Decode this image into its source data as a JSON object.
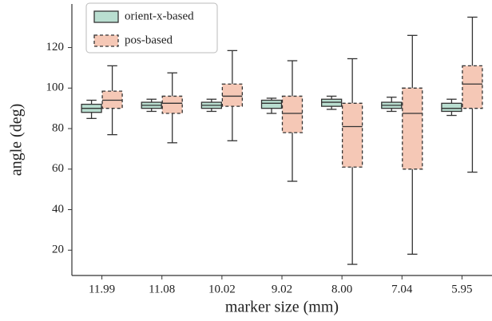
{
  "chart_data": {
    "type": "box",
    "x_label": "marker size (mm)",
    "y_label": "angle (deg)",
    "categories": [
      "11.99",
      "11.08",
      "10.02",
      "9.02",
      "8.00",
      "7.04",
      "5.95"
    ],
    "ylim": [
      7.5,
      141.5
    ],
    "yticks": [
      20,
      40,
      60,
      80,
      100,
      120
    ],
    "legend": "upper left",
    "series": [
      {
        "name": "orient-x-based",
        "color": "#b9ded0",
        "dashed": false,
        "whislo": [
          85,
          88.5,
          88.5,
          87.5,
          89.5,
          88.5,
          86.5
        ],
        "q1": [
          88,
          90,
          90,
          90,
          91,
          90,
          88.5
        ],
        "med": [
          90,
          91.5,
          91.5,
          92.5,
          93,
          91.5,
          90
        ],
        "q3": [
          92,
          93,
          93,
          94,
          94.5,
          93,
          92.5
        ],
        "whishi": [
          94,
          94.5,
          94.5,
          95,
          96,
          95.5,
          94.5
        ]
      },
      {
        "name": "pos-based",
        "color": "#f5c8b6",
        "dashed": true,
        "whislo": [
          77,
          73,
          74,
          54,
          13,
          18,
          58.5
        ],
        "q1": [
          90,
          87.5,
          91,
          78,
          61,
          60,
          90
        ],
        "med": [
          94,
          92.5,
          96,
          87.5,
          81,
          87.5,
          102
        ],
        "q3": [
          98.5,
          96,
          102,
          96,
          92.5,
          100,
          111
        ],
        "whishi": [
          111,
          107.5,
          118.5,
          113.5,
          114.5,
          126,
          135
        ]
      }
    ]
  }
}
